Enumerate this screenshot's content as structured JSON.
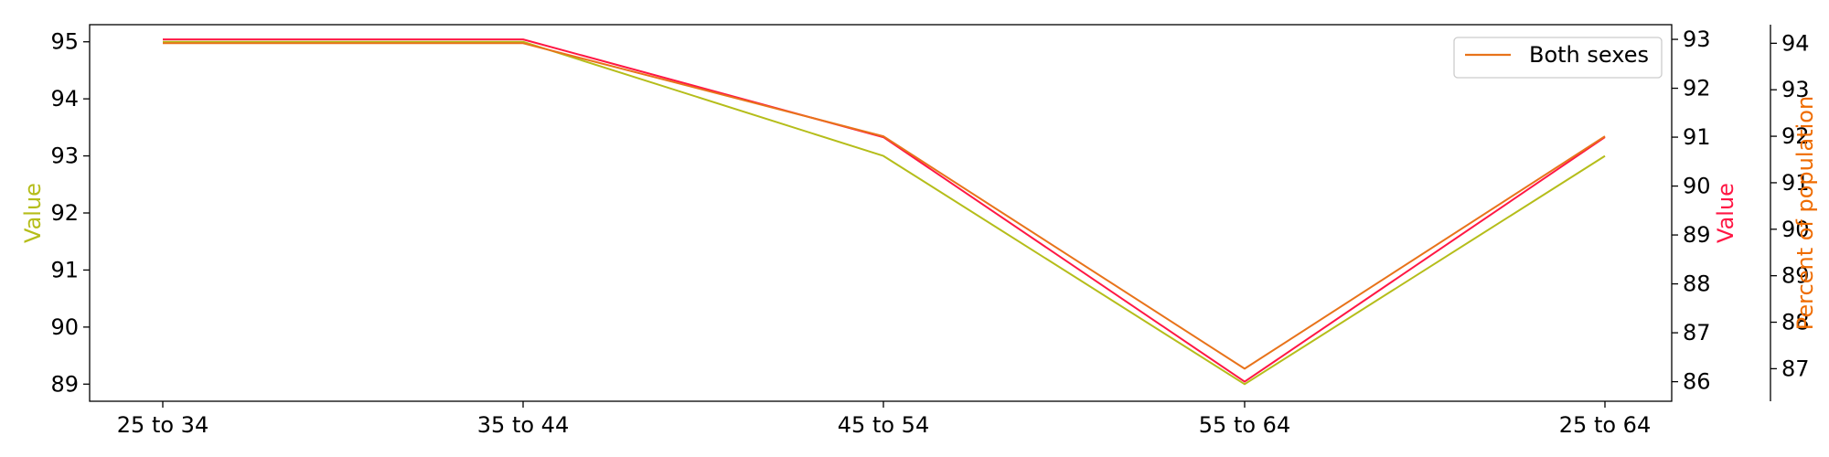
{
  "chart_data": {
    "type": "line",
    "categories": [
      "25 to 34",
      "35 to 44",
      "45 to 54",
      "55 to 64",
      "25 to 64"
    ],
    "axes": {
      "left": {
        "label": "Value",
        "color": "#b5bd1a",
        "ylim": [
          88.7,
          95.3
        ],
        "ticks": [
          89,
          90,
          91,
          92,
          93,
          94,
          95
        ]
      },
      "right1": {
        "label": "Value",
        "color": "#ff1744",
        "ylim": [
          85.6,
          93.3
        ],
        "ticks": [
          86,
          87,
          88,
          89,
          90,
          91,
          92,
          93
        ]
      },
      "right2": {
        "label": "Percent of population",
        "color": "#ef6c00",
        "ylim": [
          86.3,
          94.4
        ],
        "ticks": [
          87,
          88,
          89,
          90,
          91,
          92,
          93,
          94
        ]
      }
    },
    "series": [
      {
        "axis": "left",
        "color": "#b5bd1a",
        "values": [
          95,
          95,
          93,
          89,
          93
        ]
      },
      {
        "axis": "right1",
        "color": "#ff1744",
        "values": [
          93,
          93,
          91,
          86,
          91
        ]
      },
      {
        "name": "Both sexes",
        "axis": "right2",
        "color": "#e8731a",
        "values": [
          94,
          94,
          92,
          87,
          92
        ]
      }
    ],
    "legend": {
      "position": "top-right",
      "entries": [
        "Both sexes"
      ]
    },
    "grid": false
  }
}
